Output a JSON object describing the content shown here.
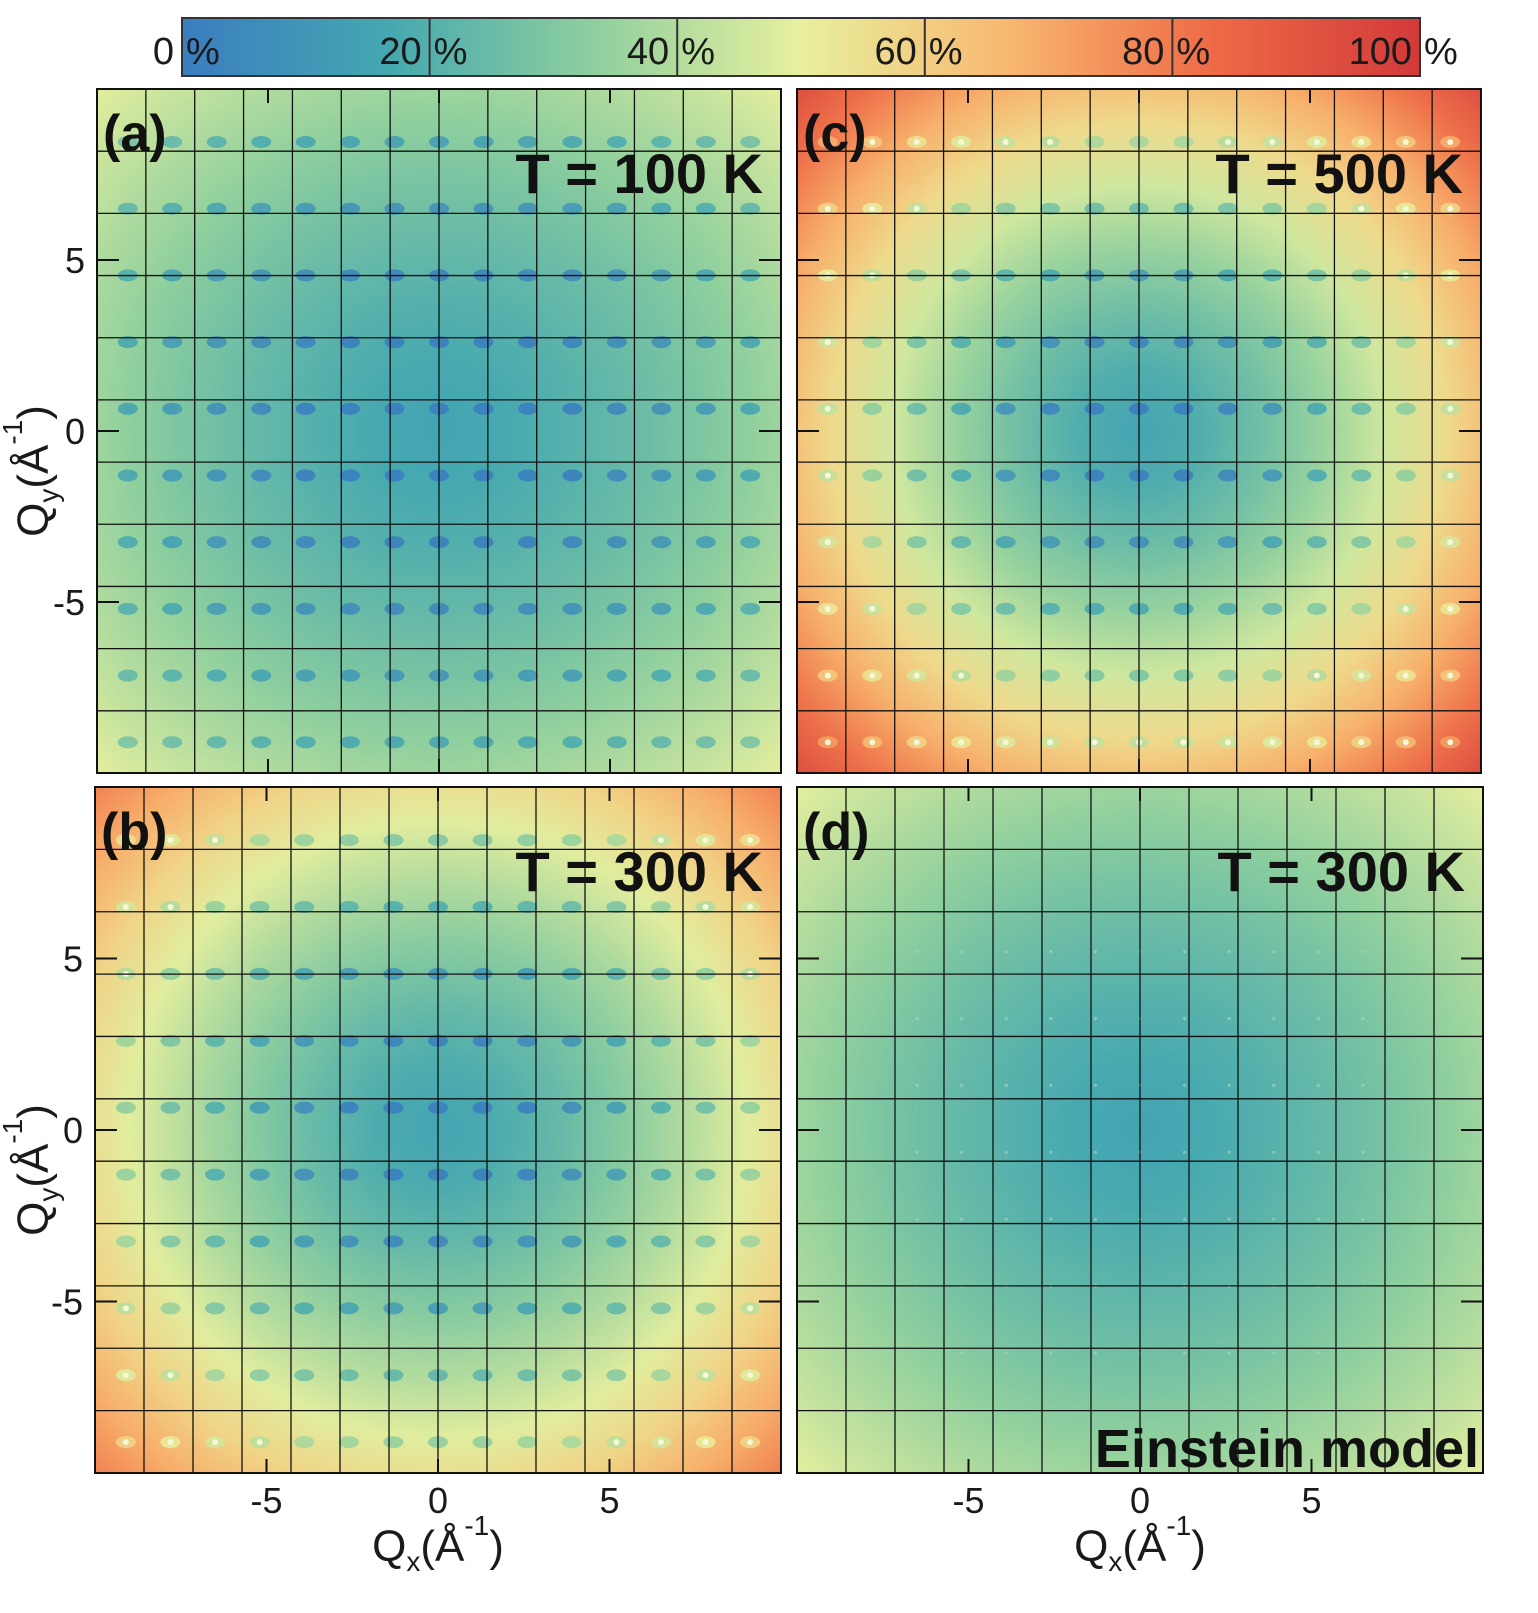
{
  "colorbar": {
    "tick_values": [
      "0",
      "20",
      "40",
      "60",
      "80",
      "100"
    ],
    "unit": "%",
    "colors": [
      "#3a7dc0",
      "#45a8b0",
      "#8fcf9e",
      "#e8f09e",
      "#f8b870",
      "#ee6a46",
      "#d23a3a"
    ]
  },
  "axes": {
    "xlabel_main": "Q",
    "xlabel_sub": "x",
    "xlabel_unit_open": "(Å",
    "xlabel_sup": "-1",
    "xlabel_unit_close": ")",
    "ylabel_main": "Q",
    "ylabel_sub": "y",
    "ylabel_unit_open": "(Å",
    "ylabel_sup": "-1",
    "ylabel_unit_close": ")",
    "ticks": [
      "-5",
      "0",
      "5"
    ]
  },
  "panels": [
    {
      "label": "(a)",
      "temperature": "T = 100 K",
      "model": ""
    },
    {
      "label": "(b)",
      "temperature": "T = 300 K",
      "model": ""
    },
    {
      "label": "(c)",
      "temperature": "T = 500 K",
      "model": ""
    },
    {
      "label": "(d)",
      "temperature": "T = 300 K",
      "model": "Einstein model"
    }
  ],
  "chart_data": {
    "type": "heatmap",
    "title": "",
    "xlabel": "Qx (Å-1)",
    "ylabel": "Qy (Å-1)",
    "xlim": [
      -10,
      10
    ],
    "ylim": [
      -10,
      10
    ],
    "ticks": [
      -5,
      0,
      5
    ],
    "value_range": [
      0,
      100
    ],
    "value_unit": "%",
    "grid": true,
    "panels": [
      {
        "id": "a",
        "temperature_K": 100,
        "model": "full",
        "center_value": 15,
        "corner_value": 50,
        "bragg_spot_pattern": true
      },
      {
        "id": "b",
        "temperature_K": 300,
        "model": "full",
        "center_value": 15,
        "corner_value": 80,
        "bragg_spot_pattern": true
      },
      {
        "id": "c",
        "temperature_K": 500,
        "model": "full",
        "center_value": 15,
        "corner_value": 95,
        "bragg_spot_pattern": true
      },
      {
        "id": "d",
        "temperature_K": 300,
        "model": "Einstein",
        "center_value": 15,
        "corner_value": 50,
        "bragg_spot_pattern": false
      }
    ]
  }
}
